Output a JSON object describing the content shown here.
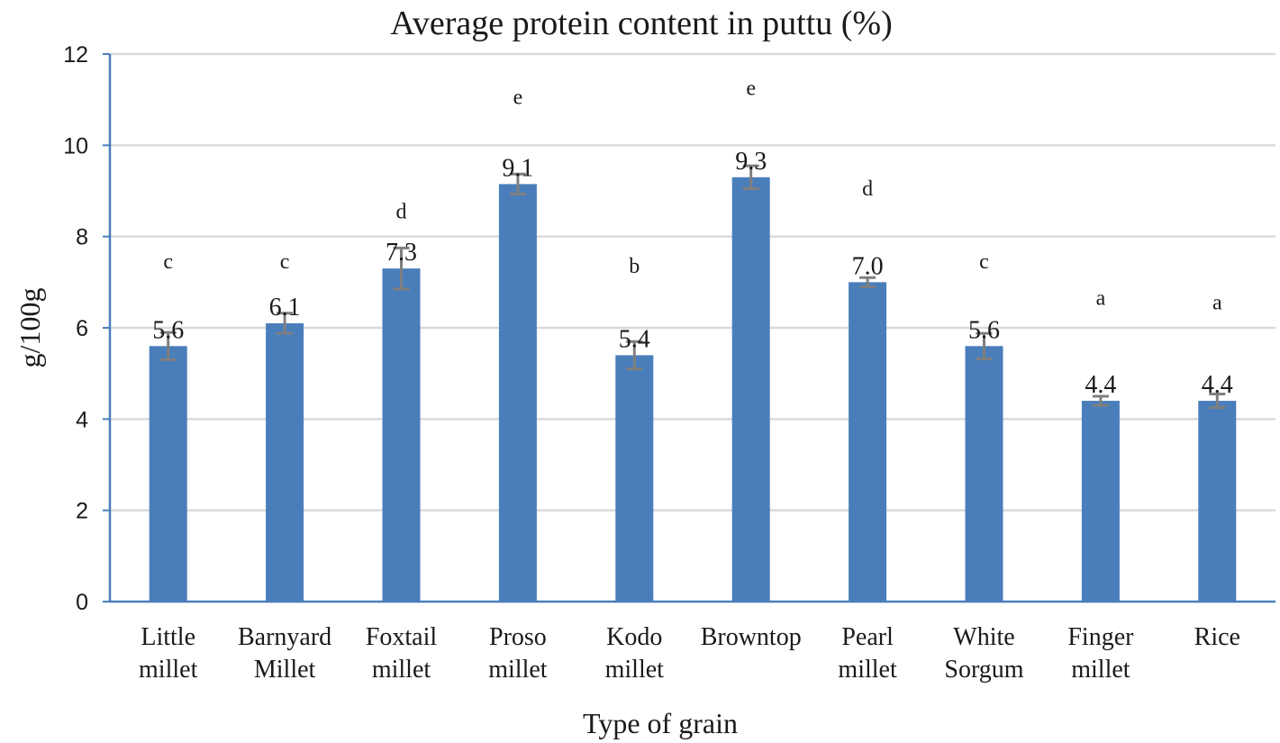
{
  "chart_data": {
    "type": "bar",
    "title": "Average protein content in puttu (%)",
    "xlabel": "Type of grain",
    "ylabel": "g/100g",
    "ylim": [
      0,
      12
    ],
    "yticks": [
      0,
      2,
      4,
      6,
      8,
      10,
      12
    ],
    "grid": true,
    "bar_color": "#4a7ebb",
    "error_color": "#7f7f7f",
    "axis_color": "#4a7ebb",
    "grid_color": "#d9d9d9",
    "categories": [
      [
        "Little",
        "millet"
      ],
      [
        "Barnyard",
        "Millet"
      ],
      [
        "Foxtail",
        "millet"
      ],
      [
        "Proso",
        "millet"
      ],
      [
        "Kodo",
        "millet"
      ],
      [
        "Browntop"
      ],
      [
        "Pearl",
        "millet"
      ],
      [
        "White",
        "Sorgum"
      ],
      [
        "Finger",
        "millet"
      ],
      [
        "Rice"
      ]
    ],
    "values": [
      5.6,
      6.1,
      7.3,
      9.15,
      5.4,
      9.3,
      7.0,
      5.6,
      4.4,
      4.4
    ],
    "data_labels": [
      "5.6",
      "6.1",
      "7.3",
      "9.1",
      "5.4",
      "9.3",
      "7.0",
      "5.6",
      "4.4",
      "4.4"
    ],
    "errors": [
      0.3,
      0.22,
      0.45,
      0.22,
      0.3,
      0.25,
      0.1,
      0.28,
      0.1,
      0.15
    ],
    "significance_letters": [
      "c",
      "c",
      "d",
      "e",
      "b",
      "e",
      "d",
      "c",
      "a",
      "a"
    ],
    "letter_values": [
      7.3,
      7.3,
      8.4,
      10.9,
      7.2,
      11.1,
      8.9,
      7.3,
      6.5,
      6.4
    ]
  }
}
